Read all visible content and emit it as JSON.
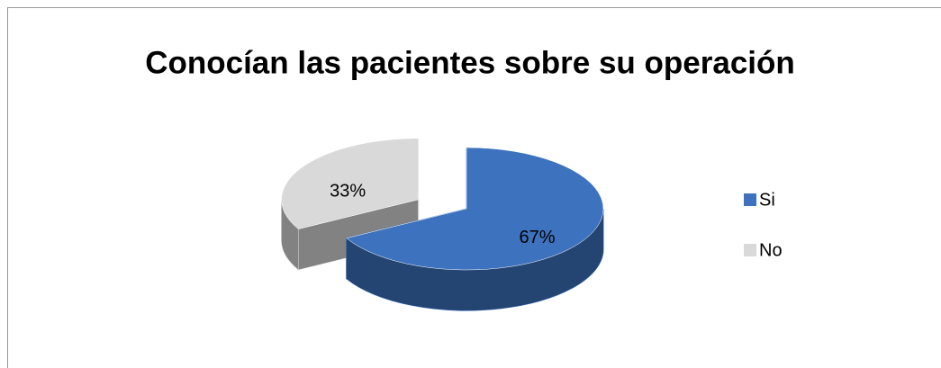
{
  "chart_data": {
    "type": "pie",
    "title": "Conocían las pacientes sobre su operación",
    "categories": [
      "Si",
      "No"
    ],
    "values": [
      67,
      33
    ],
    "value_labels": [
      "67%",
      "33%"
    ],
    "colors": [
      "#3d72be",
      "#d9d9d9"
    ],
    "legend": "right",
    "three_d": true,
    "exploded": [
      false,
      true
    ]
  }
}
